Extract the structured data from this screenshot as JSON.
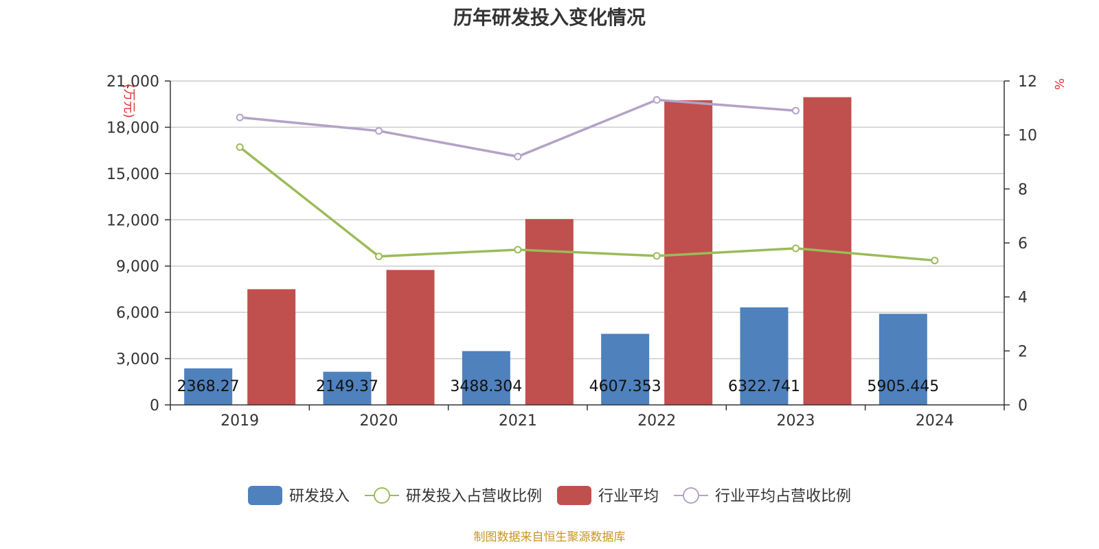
{
  "chart_data": {
    "type": "bar",
    "title": "历年研发投入变化情况",
    "categories": [
      "2019",
      "2020",
      "2021",
      "2022",
      "2023",
      "2024"
    ],
    "y_left": {
      "unit": "(万元)",
      "ylim": [
        0,
        21000
      ],
      "ticks": [
        0,
        3000,
        6000,
        9000,
        12000,
        15000,
        18000,
        21000
      ],
      "tick_labels": [
        "0",
        "3,000",
        "6,000",
        "9,000",
        "12,000",
        "15,000",
        "18,000",
        "21,000"
      ]
    },
    "y_right": {
      "unit": "%",
      "ylim": [
        0,
        12
      ],
      "ticks": [
        0,
        2,
        4,
        6,
        8,
        10,
        12
      ],
      "tick_labels": [
        "0",
        "2",
        "4",
        "6",
        "8",
        "10",
        "12"
      ]
    },
    "grid": true,
    "legend_position": "bottom",
    "series": [
      {
        "name": "研发投入",
        "kind": "bar",
        "axis": "left",
        "color": "#4f81bd",
        "values": [
          2368.27,
          2149.37,
          3488.304,
          4607.353,
          6322.741,
          5905.445
        ],
        "data_labels": [
          "2368.27",
          "2149.37",
          "3488.304",
          "4607.353",
          "6322.741",
          "5905.445"
        ]
      },
      {
        "name": "研发投入占营收比例",
        "kind": "line",
        "axis": "right",
        "color": "#9bbb59",
        "values": [
          9.55,
          5.5,
          5.75,
          5.52,
          5.8,
          5.35
        ]
      },
      {
        "name": "行业平均",
        "kind": "bar",
        "axis": "left",
        "color": "#c0504d",
        "values": [
          7500,
          8750,
          12050,
          19750,
          19950,
          null
        ]
      },
      {
        "name": "行业平均占营收比例",
        "kind": "line",
        "axis": "right",
        "color": "#b3a2c7",
        "values": [
          10.65,
          10.15,
          9.2,
          11.3,
          10.9,
          null
        ]
      }
    ]
  },
  "footer": "制图数据来自恒生聚源数据库"
}
